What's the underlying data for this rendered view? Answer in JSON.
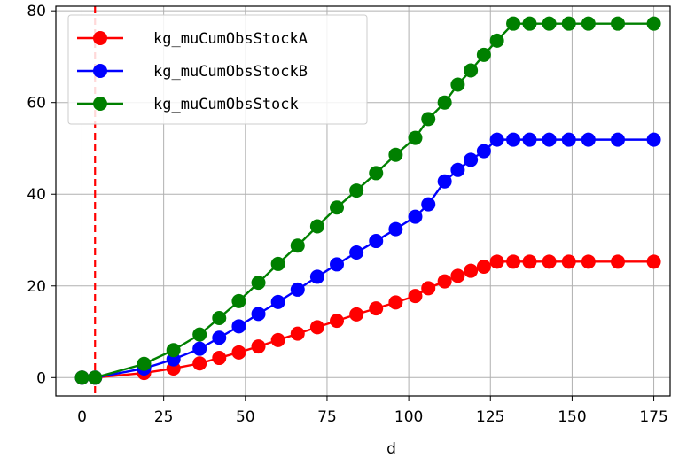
{
  "chart_data": {
    "type": "line",
    "xlabel": "d",
    "ylabel": "",
    "xlim": [
      -8,
      180
    ],
    "ylim": [
      -4,
      81
    ],
    "xticks": [
      0,
      25,
      50,
      75,
      100,
      125,
      150,
      175
    ],
    "yticks": [
      0,
      20,
      40,
      60,
      80
    ],
    "grid": true,
    "legend_position": "top-left",
    "vline": {
      "x": 4,
      "color": "#ff0000",
      "style": "dashed"
    },
    "series": [
      {
        "name": "kg_muCumObsStockA",
        "color": "#ff0000",
        "x": [
          0,
          4,
          19,
          28,
          36,
          42,
          48,
          54,
          60,
          66,
          72,
          78,
          84,
          90,
          96,
          102,
          106,
          111,
          115,
          119,
          123,
          127,
          132,
          137,
          143,
          149,
          155,
          164,
          175
        ],
        "y": [
          0,
          0,
          1.0,
          2.0,
          3.1,
          4.3,
          5.5,
          6.8,
          8.2,
          9.6,
          11.0,
          12.4,
          13.8,
          15.1,
          16.4,
          17.8,
          19.5,
          21.0,
          22.2,
          23.3,
          24.2,
          25.3,
          25.3,
          25.3,
          25.3,
          25.3,
          25.3,
          25.3,
          25.3
        ]
      },
      {
        "name": "kg_muCumObsStockB",
        "color": "#0000ff",
        "x": [
          0,
          4,
          19,
          28,
          36,
          42,
          48,
          54,
          60,
          66,
          72,
          78,
          84,
          90,
          96,
          102,
          106,
          111,
          115,
          119,
          123,
          127,
          132,
          137,
          143,
          149,
          155,
          164,
          175
        ],
        "y": [
          0,
          0,
          2.0,
          4.0,
          6.3,
          8.7,
          11.2,
          13.9,
          16.5,
          19.2,
          22.0,
          24.7,
          27.3,
          29.8,
          32.4,
          35.1,
          37.8,
          42.8,
          45.3,
          47.5,
          49.4,
          51.9,
          51.9,
          51.9,
          51.9,
          51.9,
          51.9,
          51.9,
          51.9
        ]
      },
      {
        "name": "kg_muCumObsStock",
        "color": "#008000",
        "x": [
          0,
          4,
          19,
          28,
          36,
          42,
          48,
          54,
          60,
          66,
          72,
          78,
          84,
          90,
          96,
          102,
          106,
          111,
          115,
          119,
          123,
          127,
          132,
          137,
          143,
          149,
          155,
          164,
          175
        ],
        "y": [
          0,
          0,
          3.0,
          6.0,
          9.4,
          13.0,
          16.7,
          20.7,
          24.8,
          28.8,
          33.0,
          37.1,
          40.8,
          44.6,
          48.6,
          52.3,
          56.4,
          60.0,
          63.9,
          67.0,
          70.4,
          73.5,
          77.2,
          77.2,
          77.2,
          77.2,
          77.2,
          77.2,
          77.2
        ]
      }
    ]
  }
}
